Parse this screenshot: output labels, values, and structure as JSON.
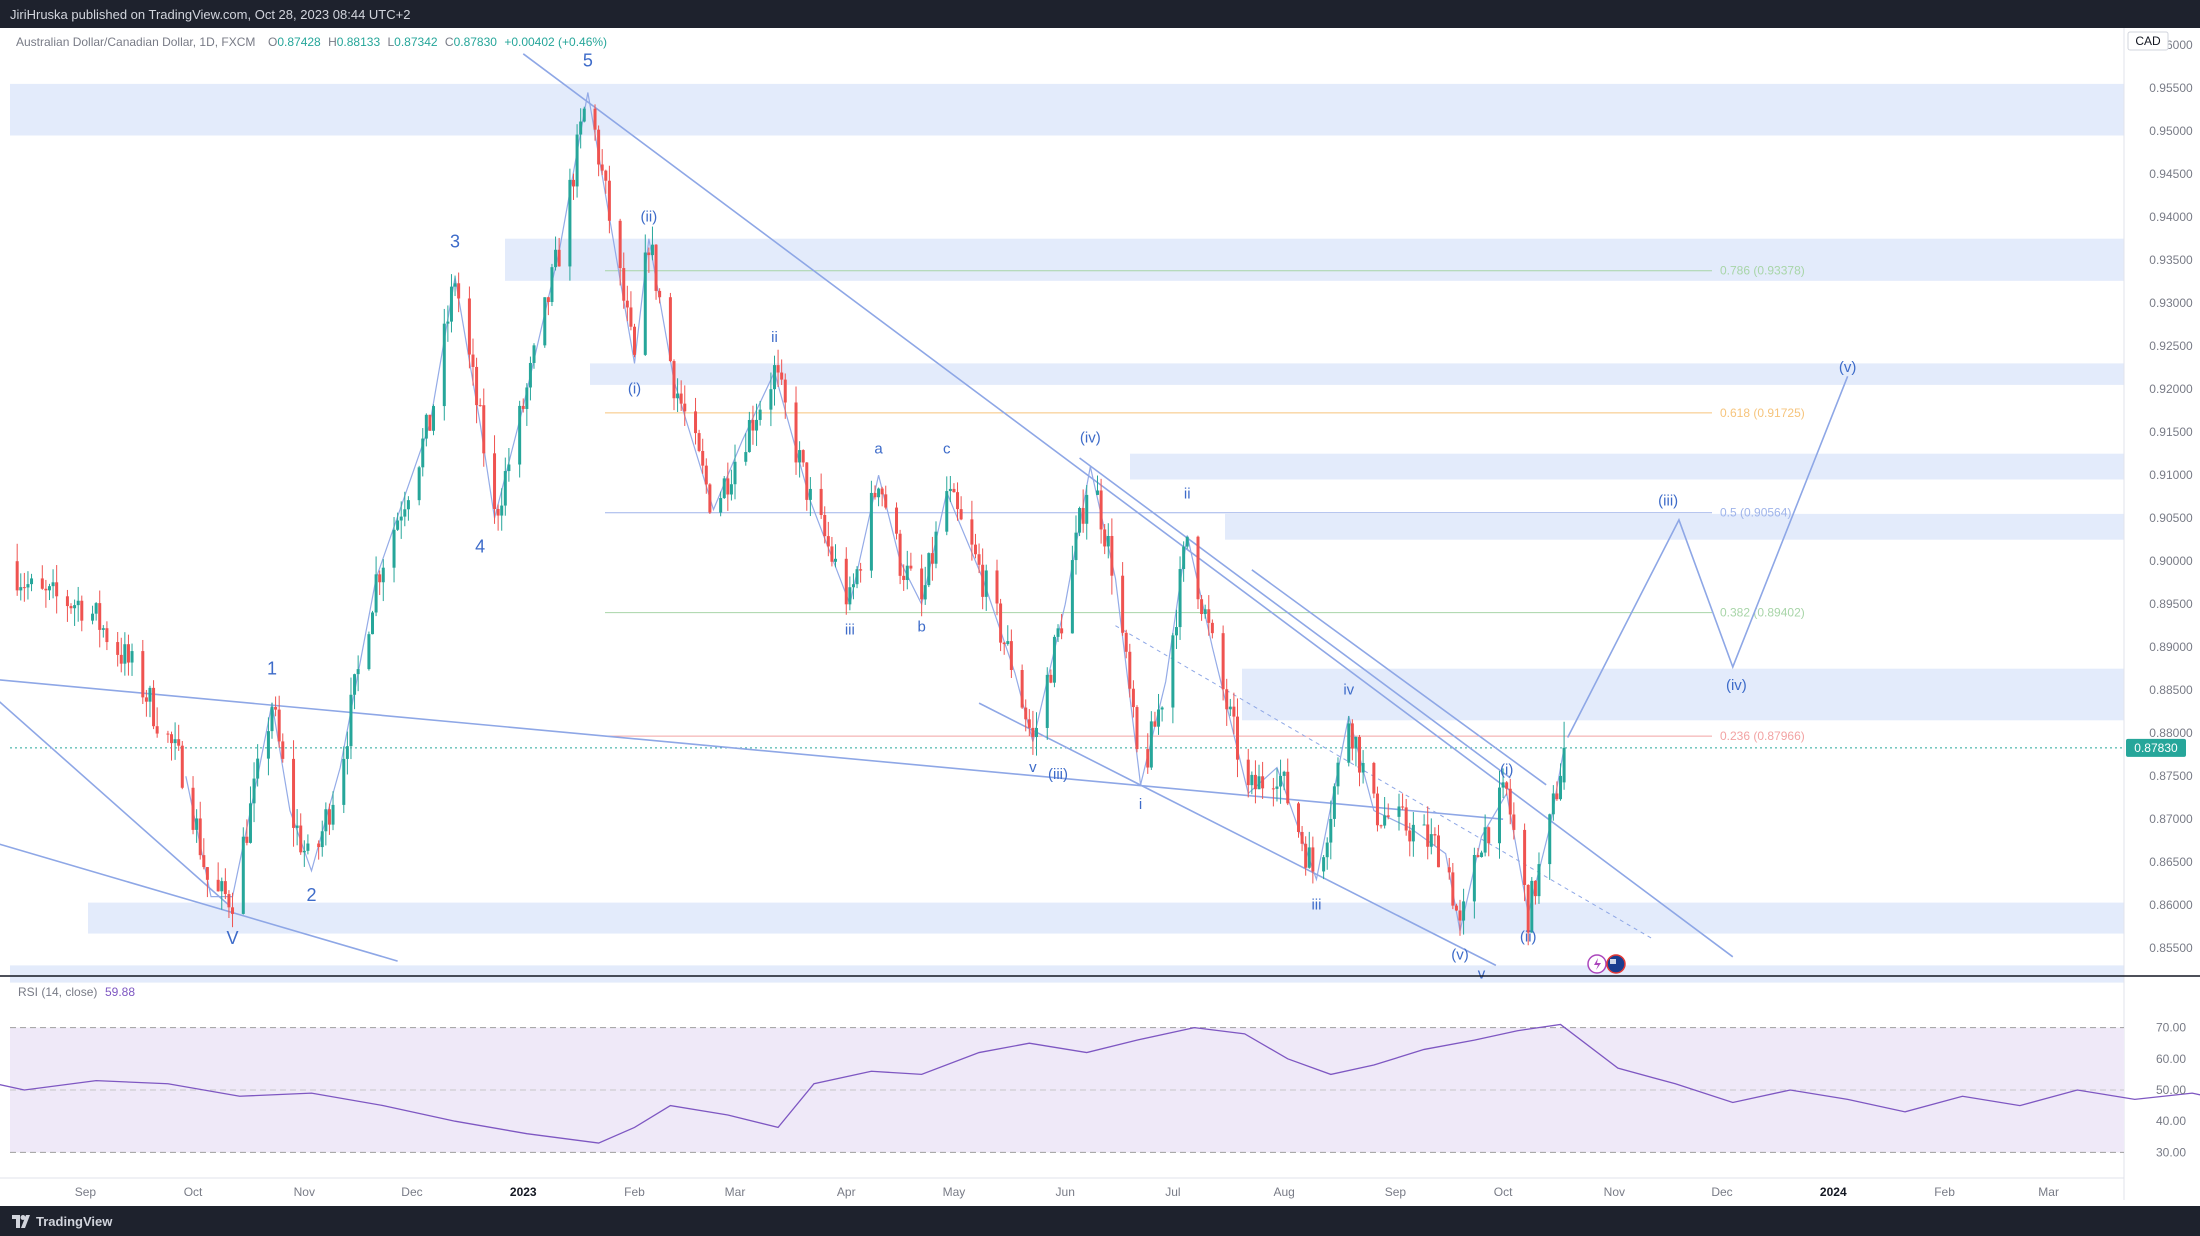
{
  "header": {
    "published_text": "JiriHruska published on TradingView.com, Oct 28, 2023 08:44 UTC+2"
  },
  "footer": {
    "brand": "TradingView"
  },
  "legend": {
    "symbol": "Australian Dollar/Canadian Dollar, 1D, FXCM",
    "o_label": "O",
    "o_value": "0.87428",
    "h_label": "H",
    "h_value": "0.88133",
    "l_label": "L",
    "l_value": "0.87342",
    "c_label": "C",
    "c_value": "0.87830",
    "change": "+0.00402 (+0.46%)"
  },
  "currency": "CAD",
  "last_price": "0.87830",
  "colors": {
    "up": "#26a69a",
    "down": "#ef5350",
    "wave": "#3d6bc9",
    "trendline": "#8ea7e6",
    "zone": "#e3ebfb",
    "rsi": "#7e57c2",
    "rsi_band": "#efe9f8"
  },
  "rsi": {
    "label": "RSI (14, close)",
    "value": "59.88",
    "ticks": [
      "70.00",
      "60.00",
      "50.00",
      "40.00",
      "30.00"
    ]
  },
  "chart_data": {
    "type": "candlestick",
    "title": "Australian Dollar/Canadian Dollar, 1D, FXCM",
    "ylabel": "CAD",
    "ylim": [
      0.852,
      0.962
    ],
    "y_ticks": [
      "0.96000",
      "0.95500",
      "0.95000",
      "0.94500",
      "0.94000",
      "0.93500",
      "0.93000",
      "0.92500",
      "0.92000",
      "0.91500",
      "0.91000",
      "0.90500",
      "0.90000",
      "0.89500",
      "0.89000",
      "0.88500",
      "0.88000",
      "0.87500",
      "0.87000",
      "0.86500",
      "0.86000",
      "0.85500"
    ],
    "x_labels": [
      "Sep",
      "Oct",
      "Nov",
      "Dec",
      "2023",
      "Feb",
      "Mar",
      "Apr",
      "May",
      "Jun",
      "Jul",
      "Aug",
      "Sep",
      "Oct",
      "Nov",
      "Dec",
      "2024",
      "Feb",
      "Mar"
    ],
    "price_path": [
      [
        "2022-08-20",
        0.9
      ],
      [
        "2022-08-27",
        0.896
      ],
      [
        "2022-09-10",
        0.895
      ],
      [
        "2022-09-24",
        0.887
      ],
      [
        "2022-10-08",
        0.875
      ],
      [
        "2022-10-15",
        0.861
      ],
      [
        "2022-10-21",
        0.861
      ],
      [
        "2022-10-28",
        0.875
      ],
      [
        "2022-11-01",
        0.8835
      ],
      [
        "2022-11-06",
        0.871
      ],
      [
        "2022-11-12",
        0.864
      ],
      [
        "2022-11-20",
        0.876
      ],
      [
        "2022-11-30",
        0.898
      ],
      [
        "2022-12-15",
        0.916
      ],
      [
        "2022-12-22",
        0.933
      ],
      [
        "2022-12-29",
        0.916
      ],
      [
        "2023-01-02",
        0.905
      ],
      [
        "2023-01-10",
        0.918
      ],
      [
        "2023-01-20",
        0.936
      ],
      [
        "2023-01-28",
        0.9545
      ],
      [
        "2023-02-03",
        0.94
      ],
      [
        "2023-02-10",
        0.923
      ],
      [
        "2023-02-14",
        0.9375
      ],
      [
        "2023-02-21",
        0.921
      ],
      [
        "2023-03-04",
        0.906
      ],
      [
        "2023-03-12",
        0.914
      ],
      [
        "2023-03-21",
        0.922
      ],
      [
        "2023-03-31",
        0.907
      ],
      [
        "2023-04-11",
        0.895
      ],
      [
        "2023-04-19",
        0.91
      ],
      [
        "2023-04-25",
        0.9
      ],
      [
        "2023-05-01",
        0.895
      ],
      [
        "2023-05-08",
        0.908
      ],
      [
        "2023-05-18",
        0.898
      ],
      [
        "2023-05-27",
        0.887
      ],
      [
        "2023-06-01",
        0.879
      ],
      [
        "2023-06-10",
        0.895
      ],
      [
        "2023-06-17",
        0.911
      ],
      [
        "2023-06-24",
        0.898
      ],
      [
        "2023-07-01",
        0.874
      ],
      [
        "2023-07-08",
        0.886
      ],
      [
        "2023-07-14",
        0.903
      ],
      [
        "2023-07-21",
        0.89
      ],
      [
        "2023-07-31",
        0.873
      ],
      [
        "2023-08-08",
        0.876
      ],
      [
        "2023-08-19",
        0.863
      ],
      [
        "2023-08-28",
        0.882
      ],
      [
        "2023-09-04",
        0.871
      ],
      [
        "2023-09-14",
        0.869
      ],
      [
        "2023-09-24",
        0.866
      ],
      [
        "2023-09-28",
        0.857
      ],
      [
        "2023-10-04",
        0.868
      ],
      [
        "2023-10-11",
        0.873
      ],
      [
        "2023-10-17",
        0.859
      ],
      [
        "2023-10-23",
        0.869
      ],
      [
        "2023-10-27",
        0.8783
      ]
    ],
    "last_candle": {
      "date": "2023-10-27",
      "open": 0.87428,
      "high": 0.88133,
      "low": 0.87342,
      "close": 0.8783
    },
    "zones": [
      [
        0.9495,
        0.9555
      ],
      [
        0.9326,
        0.9375
      ],
      [
        0.9205,
        0.923
      ],
      [
        0.9095,
        0.9125
      ],
      [
        0.9025,
        0.9055
      ],
      [
        0.8815,
        0.8875
      ],
      [
        0.8567,
        0.8603
      ],
      [
        0.851,
        0.853
      ]
    ],
    "fib_levels": [
      {
        "label": "0.786 (0.93378)",
        "value": 0.93378,
        "color": "#a8d5a8"
      },
      {
        "label": "0.618 (0.91725)",
        "value": 0.91725,
        "color": "#f6c47c"
      },
      {
        "label": "0.5 (0.90564)",
        "value": 0.90564,
        "color": "#9fb4ea"
      },
      {
        "label": "0.382 (0.89402)",
        "value": 0.89402,
        "color": "#a8d5a8"
      },
      {
        "label": "0.236 (0.87966)",
        "value": 0.87966,
        "color": "#f2a3a3"
      }
    ],
    "wave_labels": [
      {
        "t": "V",
        "date": "2022-10-21",
        "price": 0.8555
      },
      {
        "t": "1",
        "date": "2022-11-01",
        "price": 0.8868
      },
      {
        "t": "2",
        "date": "2022-11-12",
        "price": 0.8605
      },
      {
        "t": "3",
        "date": "2022-12-22",
        "price": 0.9365
      },
      {
        "t": "4",
        "date": "2022-12-29",
        "price": 0.901
      },
      {
        "t": "5",
        "date": "2023-01-28",
        "price": 0.9575
      },
      {
        "t": "(ii)",
        "date": "2023-02-14",
        "price": 0.9395
      },
      {
        "t": "(i)",
        "date": "2023-02-10",
        "price": 0.9195
      },
      {
        "t": "ii",
        "date": "2023-03-21",
        "price": 0.9255
      },
      {
        "t": "a",
        "date": "2023-04-19",
        "price": 0.9125
      },
      {
        "t": "c",
        "date": "2023-05-08",
        "price": 0.9125
      },
      {
        "t": "iii",
        "date": "2023-04-11",
        "price": 0.8915
      },
      {
        "t": "b",
        "date": "2023-05-01",
        "price": 0.8918
      },
      {
        "t": "(iv)",
        "date": "2023-06-17",
        "price": 0.9138
      },
      {
        "t": "v",
        "date": "2023-06-01",
        "price": 0.8755
      },
      {
        "t": "(iii)",
        "date": "2023-06-08",
        "price": 0.8747
      },
      {
        "t": "ii",
        "date": "2023-07-14",
        "price": 0.9073
      },
      {
        "t": "i",
        "date": "2023-07-01",
        "price": 0.8712
      },
      {
        "t": "iv",
        "date": "2023-08-28",
        "price": 0.8845
      },
      {
        "t": "iii",
        "date": "2023-08-19",
        "price": 0.8595
      },
      {
        "t": "(i)",
        "date": "2023-10-11",
        "price": 0.8752
      },
      {
        "t": "(v)",
        "date": "2023-09-28",
        "price": 0.8537
      },
      {
        "t": "v",
        "date": "2023-10-04",
        "price": 0.8515
      },
      {
        "t": "(ii)",
        "date": "2023-10-17",
        "price": 0.8558
      },
      {
        "t": "(iii)",
        "date": "2023-11-25",
        "price": 0.9065
      },
      {
        "t": "(iv)",
        "date": "2023-12-14",
        "price": 0.885
      },
      {
        "t": "(v)",
        "date": "2024-01-14",
        "price": 0.922
      }
    ],
    "projection": [
      [
        "2023-10-28",
        0.8795
      ],
      [
        "2023-11-28",
        0.9048
      ],
      [
        "2023-12-13",
        0.8877
      ],
      [
        "2024-01-14",
        0.9215
      ]
    ],
    "rsi_path": [
      [
        0,
        55
      ],
      [
        10,
        50
      ],
      [
        20,
        53
      ],
      [
        30,
        52
      ],
      [
        40,
        48
      ],
      [
        50,
        49
      ],
      [
        60,
        45
      ],
      [
        70,
        40
      ],
      [
        80,
        36
      ],
      [
        90,
        33
      ],
      [
        95,
        38
      ],
      [
        100,
        45
      ],
      [
        108,
        42
      ],
      [
        115,
        38
      ],
      [
        120,
        52
      ],
      [
        128,
        56
      ],
      [
        135,
        55
      ],
      [
        143,
        62
      ],
      [
        150,
        65
      ],
      [
        158,
        62
      ],
      [
        165,
        66
      ],
      [
        173,
        70
      ],
      [
        180,
        68
      ],
      [
        186,
        60
      ],
      [
        192,
        55
      ],
      [
        198,
        58
      ],
      [
        205,
        63
      ],
      [
        212,
        66
      ],
      [
        218,
        69
      ],
      [
        224,
        71
      ],
      [
        232,
        57
      ],
      [
        240,
        52
      ],
      [
        248,
        46
      ],
      [
        256,
        50
      ],
      [
        264,
        47
      ],
      [
        272,
        43
      ],
      [
        280,
        48
      ],
      [
        288,
        45
      ],
      [
        296,
        50
      ],
      [
        304,
        47
      ],
      [
        312,
        49
      ],
      [
        320,
        45
      ],
      [
        328,
        50
      ],
      [
        336,
        44
      ],
      [
        344,
        40
      ],
      [
        352,
        37
      ],
      [
        360,
        44
      ],
      [
        368,
        50
      ],
      [
        376,
        59
      ],
      [
        383,
        64
      ],
      [
        390,
        57
      ],
      [
        398,
        46
      ],
      [
        406,
        38
      ],
      [
        414,
        36
      ],
      [
        422,
        44
      ],
      [
        430,
        49
      ],
      [
        438,
        58
      ],
      [
        446,
        62
      ],
      [
        452,
        51
      ],
      [
        460,
        47
      ],
      [
        468,
        42
      ],
      [
        476,
        40
      ],
      [
        484,
        38
      ],
      [
        492,
        36
      ],
      [
        498,
        35
      ],
      [
        506,
        44
      ],
      [
        514,
        48
      ],
      [
        522,
        45
      ],
      [
        530,
        38
      ],
      [
        538,
        43
      ],
      [
        546,
        48
      ],
      [
        554,
        45
      ],
      [
        562,
        52
      ],
      [
        570,
        42
      ],
      [
        576,
        40
      ],
      [
        582,
        36
      ],
      [
        590,
        34
      ],
      [
        598,
        31
      ],
      [
        606,
        42
      ],
      [
        614,
        48
      ],
      [
        622,
        43
      ],
      [
        630,
        47
      ],
      [
        638,
        49
      ],
      [
        646,
        46
      ],
      [
        654,
        40
      ],
      [
        660,
        55
      ],
      [
        666,
        59
      ],
      [
        672,
        51
      ],
      [
        680,
        49
      ]
    ],
    "rsi_levels": {
      "upper": 70,
      "mid": 50,
      "lower": 30
    }
  }
}
